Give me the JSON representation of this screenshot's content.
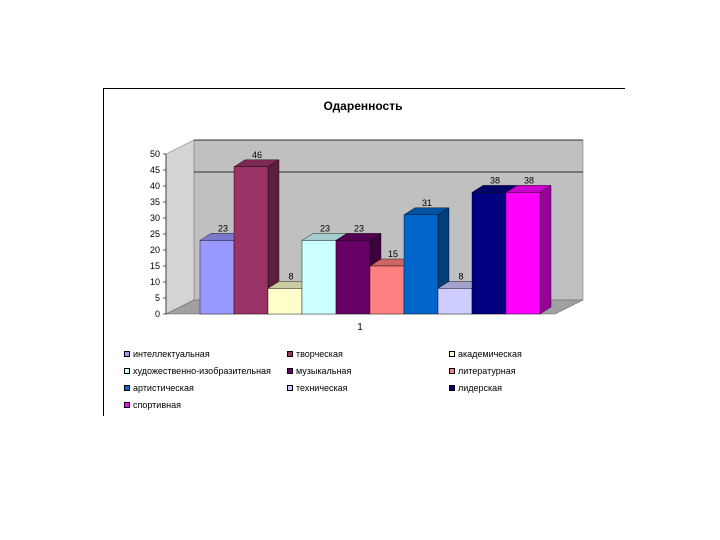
{
  "chart_data": {
    "type": "bar",
    "title": "Одаренность",
    "xlabel": "",
    "ylabel": "",
    "categories": [
      "1"
    ],
    "ylim": [
      0,
      50
    ],
    "yticks": [
      0,
      5,
      10,
      15,
      20,
      25,
      30,
      35,
      40,
      45,
      50
    ],
    "gridlines": [
      40,
      50
    ],
    "style": "3d-clustered-column",
    "legend_position": "bottom",
    "series": [
      {
        "name": "интеллектуальная",
        "values": [
          23
        ],
        "color": "#9999ff"
      },
      {
        "name": "творческая",
        "values": [
          46
        ],
        "color": "#993366"
      },
      {
        "name": "академическая",
        "values": [
          8
        ],
        "color": "#ffffcc"
      },
      {
        "name": "художественно-изобразительная",
        "values": [
          23
        ],
        "color": "#ccffff"
      },
      {
        "name": "музыкальная",
        "values": [
          23
        ],
        "color": "#660066"
      },
      {
        "name": "литературная",
        "values": [
          15
        ],
        "color": "#ff8080"
      },
      {
        "name": "артистическая",
        "values": [
          31
        ],
        "color": "#0066cc"
      },
      {
        "name": "техническая",
        "values": [
          8
        ],
        "color": "#ccccff"
      },
      {
        "name": "лидерская",
        "values": [
          38
        ],
        "color": "#000080"
      },
      {
        "name": "спортивная",
        "values": [
          38
        ],
        "color": "#ff00ff"
      }
    ]
  }
}
